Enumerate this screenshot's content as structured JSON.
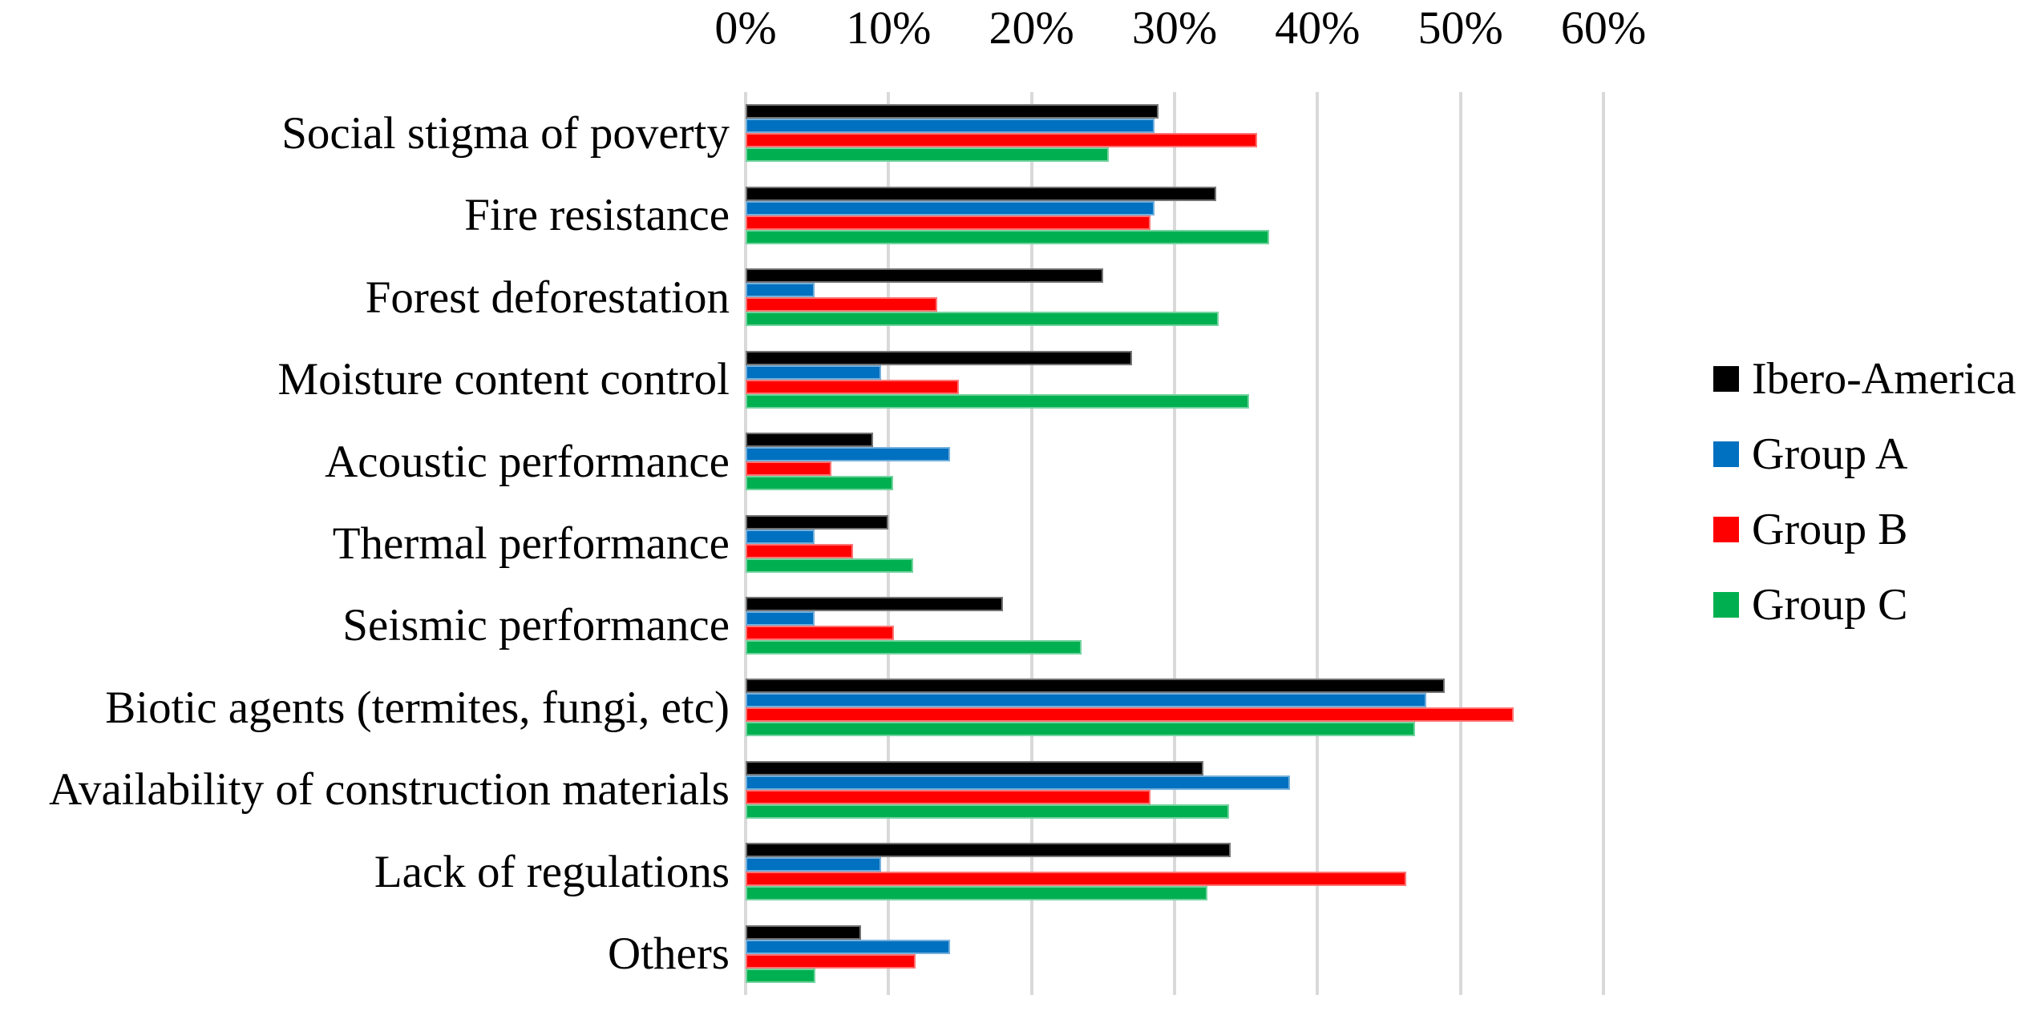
{
  "chart_data": {
    "type": "bar",
    "orientation": "horizontal",
    "title": "",
    "xlabel": "",
    "ylabel": "",
    "xlim": [
      0,
      60
    ],
    "x_ticks": [
      "0%",
      "10%",
      "20%",
      "30%",
      "40%",
      "50%",
      "60%"
    ],
    "grid": true,
    "gridline_color": "#D9D9D9",
    "legend_position": "right",
    "categories": [
      "Social stigma of poverty",
      "Fire resistance",
      "Forest deforestation",
      "Moisture content control",
      "Acoustic performance",
      "Thermal performance",
      "Seismic performance",
      "Biotic agents (termites, fungi, etc)",
      "Availability of construction materials",
      "Lack of regulations",
      "Others"
    ],
    "series": [
      {
        "name": "Ibero-America",
        "color": "#000000",
        "values": [
          28.9,
          32.9,
          25.0,
          27.0,
          8.9,
          10.0,
          18.0,
          48.9,
          32.0,
          33.9,
          8.1
        ]
      },
      {
        "name": "Group A",
        "color": "#0070C0",
        "values": [
          28.6,
          28.6,
          4.8,
          9.5,
          14.3,
          4.8,
          4.8,
          47.6,
          38.1,
          9.5,
          14.3
        ]
      },
      {
        "name": "Group B",
        "color": "#FF0000",
        "values": [
          35.8,
          28.3,
          13.4,
          14.9,
          6.0,
          7.5,
          10.4,
          53.7,
          28.3,
          46.2,
          11.9
        ]
      },
      {
        "name": "Group C",
        "color": "#00B050",
        "values": [
          25.4,
          36.6,
          33.1,
          35.2,
          10.3,
          11.7,
          23.5,
          46.8,
          33.8,
          32.3,
          4.9
        ]
      }
    ]
  }
}
